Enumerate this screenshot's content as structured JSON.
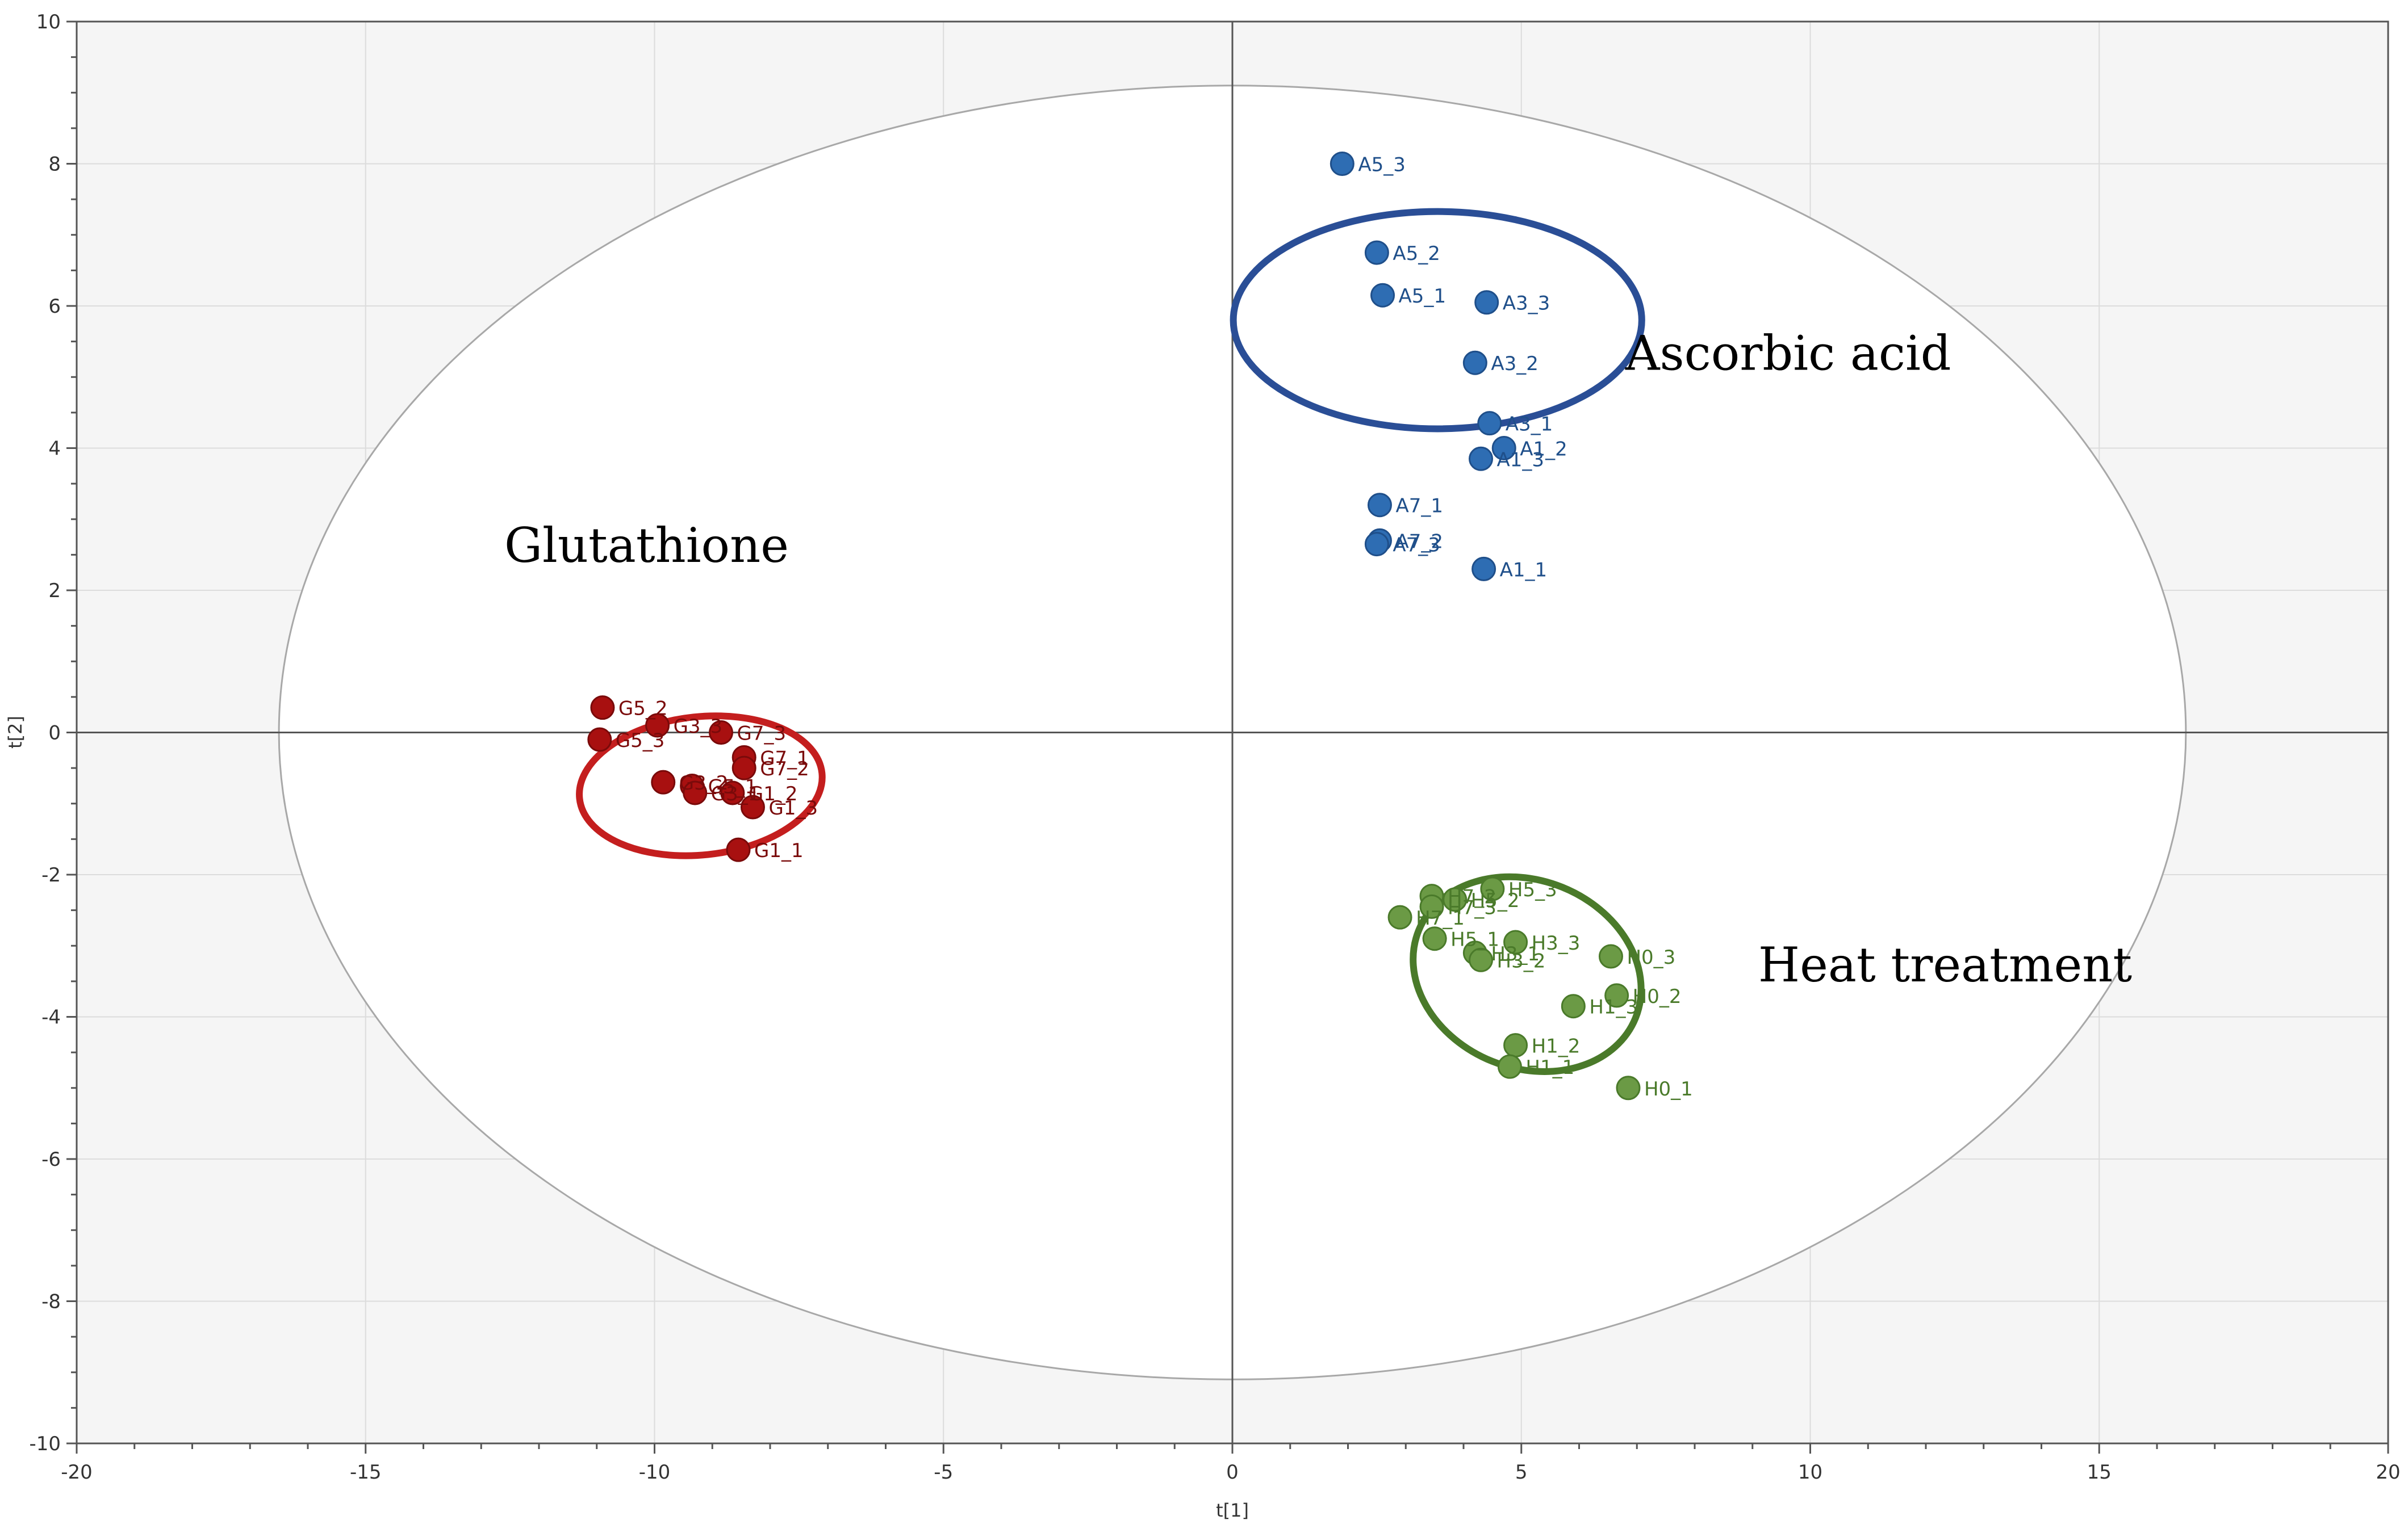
{
  "chart_data": {
    "type": "scatter",
    "title": "",
    "xlabel": "t[1]",
    "ylabel": "t[2]",
    "xlim": [
      -20,
      20
    ],
    "ylim": [
      -10,
      10
    ],
    "xticks": [
      -20,
      -15,
      -10,
      -5,
      0,
      5,
      10,
      15,
      20
    ],
    "yticks": [
      -10,
      -8,
      -6,
      -4,
      -2,
      0,
      2,
      4,
      6,
      8,
      10
    ],
    "grid": true,
    "hotelling_ellipse": {
      "center": [
        0,
        0
      ],
      "rx": 16.5,
      "ry": 9.1
    },
    "series": [
      {
        "name": "Ascorbic acid",
        "color": "#2e6db3",
        "stroke": "#1f4f8a",
        "ellipse_color": "#2a4e96",
        "ellipse": {
          "cx": 3.55,
          "cy": 5.8,
          "rx": 6.2,
          "ry": 3.3,
          "angle": 0
        },
        "label_pos": [
          6.8,
          5.1
        ],
        "points": [
          {
            "label": "A5_3",
            "x": 1.9,
            "y": 8.0
          },
          {
            "label": "A5_2",
            "x": 2.5,
            "y": 6.75
          },
          {
            "label": "A5_1",
            "x": 2.6,
            "y": 6.15
          },
          {
            "label": "A3_3",
            "x": 4.4,
            "y": 6.05
          },
          {
            "label": "A3_2",
            "x": 4.2,
            "y": 5.2
          },
          {
            "label": "A3_1",
            "x": 4.45,
            "y": 4.35
          },
          {
            "label": "A1_2",
            "x": 4.7,
            "y": 4.0
          },
          {
            "label": "A1_3",
            "x": 4.3,
            "y": 3.85
          },
          {
            "label": "A7_1",
            "x": 2.55,
            "y": 3.2
          },
          {
            "label": "A7_2",
            "x": 2.55,
            "y": 2.7
          },
          {
            "label": "A7_3",
            "x": 2.5,
            "y": 2.65
          },
          {
            "label": "A1_1",
            "x": 4.35,
            "y": 2.3
          }
        ]
      },
      {
        "name": "Glutathione",
        "color": "#a81010",
        "stroke": "#7a0a0a",
        "ellipse_color": "#c41e1e",
        "ellipse": {
          "cx": -9.2,
          "cy": -0.75,
          "rx": 3.7,
          "ry": 2.1,
          "angle": -6
        },
        "label_pos": [
          -12.6,
          2.4
        ],
        "points": [
          {
            "label": "G5_2",
            "x": -10.9,
            "y": 0.35
          },
          {
            "label": "G5_3",
            "x": -10.95,
            "y": -0.1
          },
          {
            "label": "G3_3",
            "x": -9.95,
            "y": 0.1
          },
          {
            "label": "G7_3",
            "x": -8.85,
            "y": 0.0
          },
          {
            "label": "G7_1",
            "x": -8.45,
            "y": -0.35
          },
          {
            "label": "G7_2",
            "x": -8.45,
            "y": -0.5
          },
          {
            "label": "G3_2",
            "x": -9.85,
            "y": -0.7
          },
          {
            "label": "G5_1",
            "x": -9.35,
            "y": -0.75
          },
          {
            "label": "G3_1",
            "x": -9.3,
            "y": -0.85
          },
          {
            "label": "G1_2",
            "x": -8.65,
            "y": -0.85
          },
          {
            "label": "G1_3",
            "x": -8.3,
            "y": -1.05
          },
          {
            "label": "G1_1",
            "x": -8.55,
            "y": -1.65
          }
        ]
      },
      {
        "name": "Heat treatment",
        "color": "#6b9a45",
        "stroke": "#4a7a2a",
        "ellipse_color": "#4a7a2a",
        "ellipse": {
          "cx": 5.1,
          "cy": -3.4,
          "rx": 3.55,
          "ry": 2.85,
          "angle": 22
        },
        "label_pos": [
          9.1,
          -3.5
        ],
        "points": [
          {
            "label": "H5_3",
            "x": 4.5,
            "y": -2.2
          },
          {
            "label": "H7_2",
            "x": 3.45,
            "y": -2.3
          },
          {
            "label": "H5_2",
            "x": 3.85,
            "y": -2.35
          },
          {
            "label": "H7_3",
            "x": 3.45,
            "y": -2.45
          },
          {
            "label": "H7_1",
            "x": 2.9,
            "y": -2.6
          },
          {
            "label": "H5_1",
            "x": 3.5,
            "y": -2.9
          },
          {
            "label": "H3_3",
            "x": 4.9,
            "y": -2.95
          },
          {
            "label": "H3_1",
            "x": 4.2,
            "y": -3.1
          },
          {
            "label": "H3_2",
            "x": 4.3,
            "y": -3.2
          },
          {
            "label": "H0_3",
            "x": 6.55,
            "y": -3.15
          },
          {
            "label": "H0_2",
            "x": 6.65,
            "y": -3.7
          },
          {
            "label": "H1_3",
            "x": 5.9,
            "y": -3.85
          },
          {
            "label": "H1_2",
            "x": 4.9,
            "y": -4.4
          },
          {
            "label": "H1_1",
            "x": 4.8,
            "y": -4.7
          },
          {
            "label": "H0_1",
            "x": 6.85,
            "y": -5.0
          }
        ]
      }
    ]
  }
}
